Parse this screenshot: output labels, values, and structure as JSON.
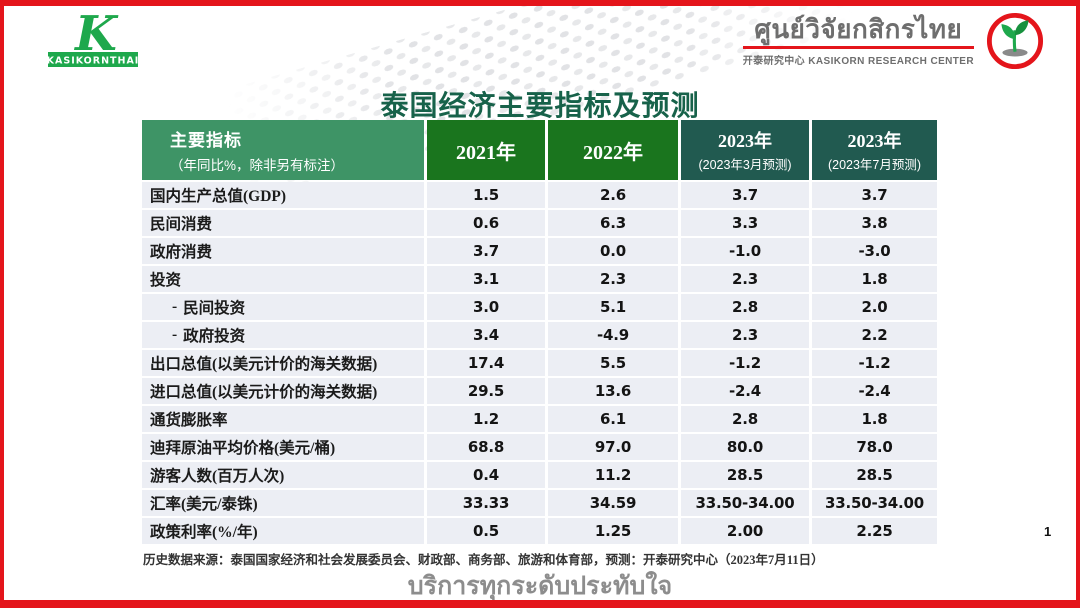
{
  "brand": {
    "kasikorn_wordmark": "KASIKORNTHAI",
    "research_center_thai": "ศูนย์วิจัยกสิกรไทย",
    "research_center_sub": "开泰研究中心 KASIKORN RESEARCH CENTER"
  },
  "colors": {
    "brand_red": "#e4151b",
    "kasikorn_green": "#1ea84c",
    "header_light_green": "#3e9466",
    "header_green": "#1a751e",
    "header_teal": "#215a50",
    "title_green": "#17624a",
    "row_bg": "#eceef4"
  },
  "title": "泰国经济主要指标及预测",
  "table": {
    "header": {
      "indicator_line1": "主要指标",
      "indicator_line2": "（年同比%，除非另有标注）",
      "columns": [
        {
          "label": "2021年",
          "sub": ""
        },
        {
          "label": "2022年",
          "sub": ""
        },
        {
          "label": "2023年",
          "sub": "(2023年3月预测)"
        },
        {
          "label": "2023年",
          "sub": "(2023年7月预测)"
        }
      ]
    },
    "rows": [
      {
        "prefix": "",
        "label": "国内生产总值(GDP)",
        "values": [
          "1.5",
          "2.6",
          "3.7",
          "3.7"
        ]
      },
      {
        "prefix": "",
        "label": "民间消费",
        "values": [
          "0.6",
          "6.3",
          "3.3",
          "3.8"
        ]
      },
      {
        "prefix": "",
        "label": "政府消费",
        "values": [
          "3.7",
          "0.0",
          "-1.0",
          "-3.0"
        ]
      },
      {
        "prefix": "",
        "label": "投资",
        "values": [
          "3.1",
          "2.3",
          "2.3",
          "1.8"
        ]
      },
      {
        "prefix": "-",
        "label": "民间投资",
        "values": [
          "3.0",
          "5.1",
          "2.8",
          "2.0"
        ]
      },
      {
        "prefix": "-",
        "label": "政府投资",
        "values": [
          "3.4",
          "-4.9",
          "2.3",
          "2.2"
        ]
      },
      {
        "prefix": "",
        "label": "出口总值(以美元计价的海关数据)",
        "values": [
          "17.4",
          "5.5",
          "-1.2",
          "-1.2"
        ]
      },
      {
        "prefix": "",
        "label": "进口总值(以美元计价的海关数据)",
        "values": [
          "29.5",
          "13.6",
          "-2.4",
          "-2.4"
        ]
      },
      {
        "prefix": "",
        "label": "通货膨胀率",
        "values": [
          "1.2",
          "6.1",
          "2.8",
          "1.8"
        ]
      },
      {
        "prefix": "",
        "label": "迪拜原油平均价格(美元/桶)",
        "values": [
          "68.8",
          "97.0",
          "80.0",
          "78.0"
        ]
      },
      {
        "prefix": "",
        "label": "游客人数(百万人次)",
        "values": [
          "0.4",
          "11.2",
          "28.5",
          "28.5"
        ]
      },
      {
        "prefix": "",
        "label": "汇率(美元/泰铢)",
        "values": [
          "33.33",
          "34.59",
          "33.50-34.00",
          "33.50-34.00"
        ]
      },
      {
        "prefix": "",
        "label": "政策利率(%/年)",
        "values": [
          "0.5",
          "1.25",
          "2.00",
          "2.25"
        ]
      }
    ]
  },
  "footer": {
    "source": "历史数据来源：泰国国家经济和社会发展委员会、财政部、商务部、旅游和体育部，预测：开泰研究中心（2023年7月11日）",
    "slogan": "บริการทุกระดับประทับใจ",
    "page_number": "1"
  }
}
